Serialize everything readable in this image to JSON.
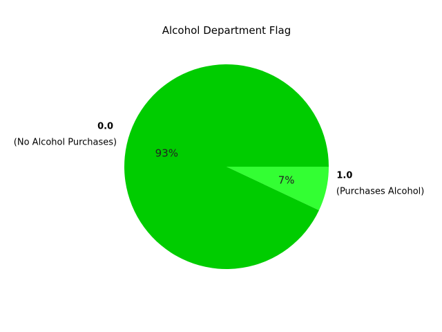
{
  "chart_data": {
    "type": "pie",
    "title": "Alcohol Department Flag",
    "slices": [
      {
        "label": "0.0",
        "sublabel": "(No Alcohol Purchases)",
        "value": 93,
        "pct_label": "93%",
        "color": "#00cc00"
      },
      {
        "label": "1.0",
        "sublabel": "(Purchases Alcohol)",
        "value": 7,
        "pct_label": "7%",
        "color": "#33ff33"
      }
    ]
  }
}
